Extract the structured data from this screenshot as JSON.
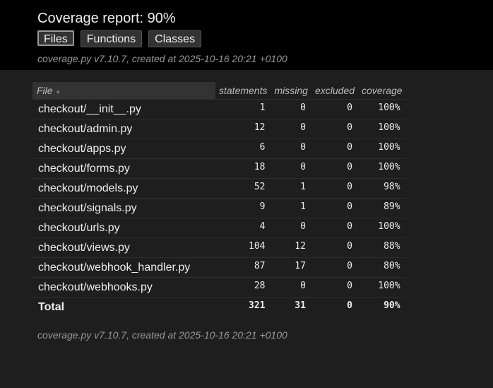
{
  "header": {
    "title": "Coverage report: 90%",
    "nav": [
      "Files",
      "Functions",
      "Classes"
    ],
    "active_nav": "Files",
    "created": "coverage.py v7.10.7, created at 2025-10-16 20:21 +0100"
  },
  "table": {
    "columns": [
      "File",
      "statements",
      "missing",
      "excluded",
      "coverage"
    ],
    "sort_icon": "sort-up-icon",
    "rows": [
      {
        "file": "checkout/__init__.py",
        "statements": "1",
        "missing": "0",
        "excluded": "0",
        "coverage": "100%"
      },
      {
        "file": "checkout/admin.py",
        "statements": "12",
        "missing": "0",
        "excluded": "0",
        "coverage": "100%"
      },
      {
        "file": "checkout/apps.py",
        "statements": "6",
        "missing": "0",
        "excluded": "0",
        "coverage": "100%"
      },
      {
        "file": "checkout/forms.py",
        "statements": "18",
        "missing": "0",
        "excluded": "0",
        "coverage": "100%"
      },
      {
        "file": "checkout/models.py",
        "statements": "52",
        "missing": "1",
        "excluded": "0",
        "coverage": "98%"
      },
      {
        "file": "checkout/signals.py",
        "statements": "9",
        "missing": "1",
        "excluded": "0",
        "coverage": "89%"
      },
      {
        "file": "checkout/urls.py",
        "statements": "4",
        "missing": "0",
        "excluded": "0",
        "coverage": "100%"
      },
      {
        "file": "checkout/views.py",
        "statements": "104",
        "missing": "12",
        "excluded": "0",
        "coverage": "88%"
      },
      {
        "file": "checkout/webhook_handler.py",
        "statements": "87",
        "missing": "17",
        "excluded": "0",
        "coverage": "80%"
      },
      {
        "file": "checkout/webhooks.py",
        "statements": "28",
        "missing": "0",
        "excluded": "0",
        "coverage": "100%"
      }
    ],
    "total": {
      "file": "Total",
      "statements": "321",
      "missing": "31",
      "excluded": "0",
      "coverage": "90%"
    }
  },
  "footer": {
    "created": "coverage.py v7.10.7, created at 2025-10-16 20:21 +0100"
  },
  "colors": {
    "header_bg": "#000000",
    "body_bg": "#1e1e1e",
    "text": "#eeeeee",
    "muted": "#999999"
  }
}
